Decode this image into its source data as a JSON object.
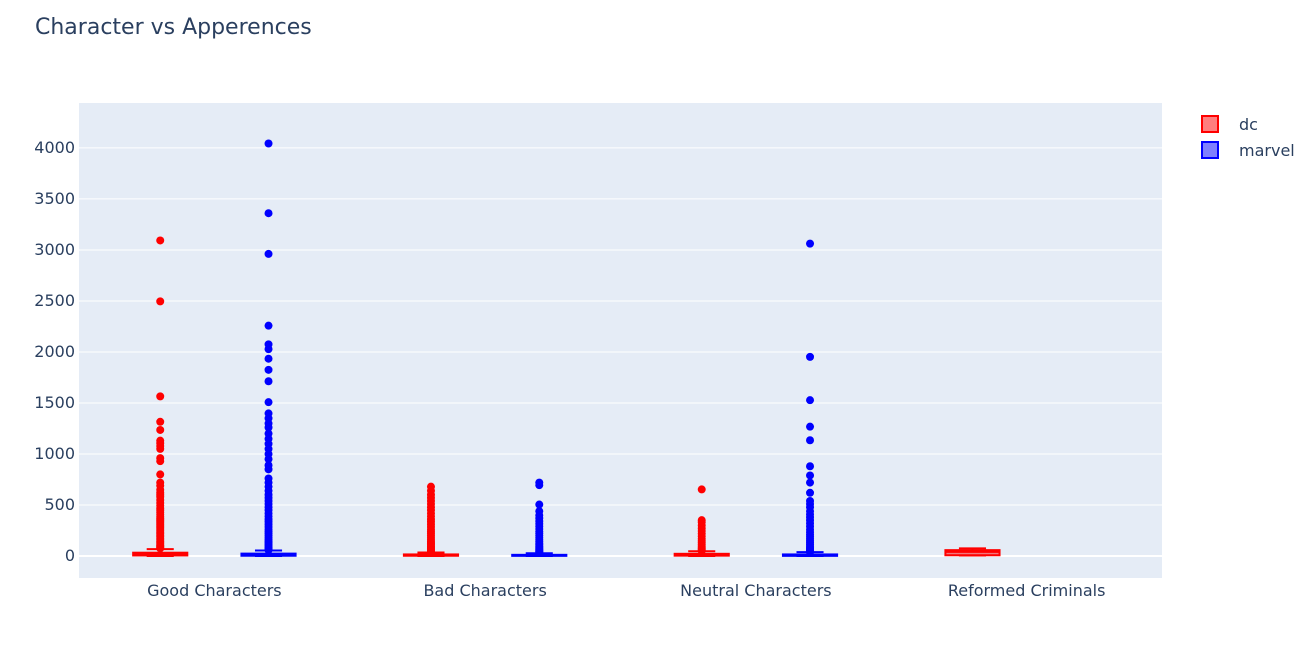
{
  "chart_data": {
    "type": "box",
    "title": "Character vs Apperences",
    "xlabel": "",
    "ylabel": "",
    "categories": [
      "Good Characters",
      "Bad Characters",
      "Neutral Characters",
      "Reformed Criminals"
    ],
    "ylim": [
      -215,
      4440
    ],
    "yticks": [
      0,
      500,
      1000,
      1500,
      2000,
      2500,
      3000,
      3500,
      4000
    ],
    "legend_position": "top-right",
    "grid": true,
    "series": [
      {
        "name": "dc",
        "color": "#ff0000",
        "fill": "rgba(255,0,0,0.5)",
        "boxes": [
          {
            "category": "Good Characters",
            "q1": 6,
            "median": 15,
            "q3": 33,
            "whisker_low": 1,
            "whisker_high": 68,
            "outliers": [
              3093,
              2496,
              1565,
              1316,
              1236,
              1131,
              1105,
              1078,
              1050,
              960,
              930,
              800,
              720,
              690,
              650,
              620,
              600,
              580,
              550,
              520,
              495,
              470,
              450,
              430,
              410,
              390,
              370,
              355,
              340,
              325,
              310,
              295,
              280,
              265,
              250,
              235,
              220,
              205,
              190,
              175,
              160,
              145,
              130,
              118,
              106,
              95,
              85,
              76
            ]
          },
          {
            "category": "Bad Characters",
            "q1": 3,
            "median": 7,
            "q3": 16,
            "whisker_low": 1,
            "whisker_high": 35,
            "outliers": [
              680,
              640,
              600,
              570,
              540,
              510,
              480,
              450,
              420,
              390,
              360,
              335,
              310,
              285,
              260,
              240,
              220,
              200,
              180,
              160,
              140,
              125,
              110,
              96,
              84,
              72,
              62,
              52,
              44,
              38
            ]
          },
          {
            "category": "Neutral Characters",
            "q1": 4,
            "median": 10,
            "q3": 22,
            "whisker_low": 1,
            "whisker_high": 47,
            "outliers": [
              653,
              352,
              333,
              300,
              270,
              245,
              220,
              195,
              170,
              150,
              130,
              112,
              96,
              82,
              70,
              60,
              52
            ]
          },
          {
            "category": "Reformed Criminals",
            "q1": 8,
            "median": 41,
            "q3": 58,
            "whisker_low": 5,
            "whisker_high": 75,
            "outliers": []
          }
        ]
      },
      {
        "name": "marvel",
        "color": "#0000ff",
        "fill": "rgba(0,0,255,0.5)",
        "boxes": [
          {
            "category": "Good Characters",
            "q1": 3,
            "median": 9,
            "q3": 24,
            "whisker_low": 1,
            "whisker_high": 55,
            "outliers": [
              4043,
              3360,
              2961,
              2258,
              2075,
              2028,
              1934,
              1825,
              1713,
              1508,
              1398,
              1350,
              1300,
              1260,
              1200,
              1150,
              1100,
              1050,
              1000,
              950,
              890,
              850,
              760,
              720,
              680,
              640,
              600,
              570,
              540,
              510,
              480,
              450,
              420,
              390,
              360,
              335,
              310,
              285,
              260,
              240,
              220,
              200,
              180,
              160,
              145,
              130,
              115,
              100,
              88,
              76,
              66,
              58
            ]
          },
          {
            "category": "Bad Characters",
            "q1": 2,
            "median": 5,
            "q3": 12,
            "whisker_low": 1,
            "whisker_high": 28,
            "outliers": [
              720,
              695,
              505,
              440,
              400,
              370,
              340,
              315,
              290,
              265,
              240,
              220,
              200,
              180,
              160,
              142,
              126,
              112,
              98,
              86,
              75,
              65,
              56,
              48,
              41,
              34
            ]
          },
          {
            "category": "Neutral Characters",
            "q1": 2,
            "median": 6,
            "q3": 16,
            "whisker_low": 1,
            "whisker_high": 38,
            "outliers": [
              3062,
              1952,
              1528,
              1268,
              1135,
              880,
              790,
              720,
              620,
              540,
              510,
              480,
              440,
              410,
              380,
              350,
              320,
              290,
              260,
              235,
              210,
              190,
              170,
              150,
              130,
              112,
              96,
              82,
              70,
              60,
              50,
              42
            ]
          }
        ]
      }
    ]
  }
}
